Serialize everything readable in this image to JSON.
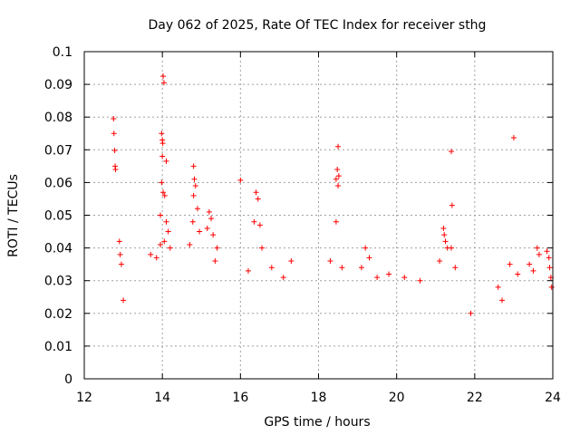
{
  "chart_data": {
    "type": "scatter",
    "title": "Day 062 of 2025, Rate Of TEC Index for receiver sthg",
    "xlabel": "GPS time / hours",
    "ylabel": "ROTI / TECUs",
    "xlim": [
      12,
      24
    ],
    "ylim": [
      0,
      0.1
    ],
    "xticks": [
      12,
      14,
      16,
      18,
      20,
      22,
      24
    ],
    "yticks": [
      0,
      0.01,
      0.02,
      0.03,
      0.04,
      0.05,
      0.06,
      0.07,
      0.08,
      0.09,
      0.1
    ],
    "xtick_labels": [
      "12",
      "14",
      "16",
      "18",
      "20",
      "22",
      "24"
    ],
    "ytick_labels": [
      "0",
      "0.01",
      "0.02",
      "0.03",
      "0.04",
      "0.05",
      "0.06",
      "0.07",
      "0.08",
      "0.09",
      "0.1"
    ],
    "grid": true,
    "marker": "+",
    "marker_color": "#ff0000",
    "series": [
      {
        "name": "ROTI",
        "points": [
          [
            12.75,
            0.0795
          ],
          [
            12.76,
            0.075
          ],
          [
            12.78,
            0.0698
          ],
          [
            12.79,
            0.065
          ],
          [
            12.8,
            0.064
          ],
          [
            12.9,
            0.042
          ],
          [
            12.92,
            0.038
          ],
          [
            12.95,
            0.035
          ],
          [
            13.0,
            0.024
          ],
          [
            13.7,
            0.038
          ],
          [
            13.85,
            0.037
          ],
          [
            13.95,
            0.041
          ],
          [
            14.02,
            0.0925
          ],
          [
            14.04,
            0.0905
          ],
          [
            13.98,
            0.075
          ],
          [
            14.0,
            0.073
          ],
          [
            14.01,
            0.072
          ],
          [
            14.0,
            0.068
          ],
          [
            14.1,
            0.0665
          ],
          [
            13.98,
            0.06
          ],
          [
            14.02,
            0.057
          ],
          [
            14.06,
            0.056
          ],
          [
            13.95,
            0.05
          ],
          [
            14.1,
            0.048
          ],
          [
            14.05,
            0.042
          ],
          [
            14.2,
            0.04
          ],
          [
            14.15,
            0.045
          ],
          [
            14.8,
            0.065
          ],
          [
            14.82,
            0.061
          ],
          [
            14.85,
            0.059
          ],
          [
            14.8,
            0.056
          ],
          [
            14.9,
            0.052
          ],
          [
            14.78,
            0.048
          ],
          [
            14.95,
            0.045
          ],
          [
            14.7,
            0.041
          ],
          [
            15.2,
            0.051
          ],
          [
            15.25,
            0.049
          ],
          [
            15.15,
            0.046
          ],
          [
            15.3,
            0.044
          ],
          [
            15.4,
            0.04
          ],
          [
            15.35,
            0.036
          ],
          [
            16.0,
            0.0607
          ],
          [
            16.4,
            0.057
          ],
          [
            16.45,
            0.055
          ],
          [
            16.35,
            0.048
          ],
          [
            16.5,
            0.047
          ],
          [
            16.55,
            0.04
          ],
          [
            16.2,
            0.033
          ],
          [
            16.8,
            0.034
          ],
          [
            17.3,
            0.036
          ],
          [
            17.1,
            0.031
          ],
          [
            18.5,
            0.071
          ],
          [
            18.48,
            0.064
          ],
          [
            18.45,
            0.061
          ],
          [
            18.5,
            0.059
          ],
          [
            18.52,
            0.062
          ],
          [
            18.45,
            0.048
          ],
          [
            18.3,
            0.036
          ],
          [
            18.6,
            0.034
          ],
          [
            19.2,
            0.04
          ],
          [
            19.3,
            0.037
          ],
          [
            19.1,
            0.034
          ],
          [
            19.5,
            0.031
          ],
          [
            19.8,
            0.032
          ],
          [
            20.2,
            0.031
          ],
          [
            20.6,
            0.03
          ],
          [
            21.2,
            0.046
          ],
          [
            21.22,
            0.044
          ],
          [
            21.25,
            0.042
          ],
          [
            21.3,
            0.04
          ],
          [
            21.4,
            0.0695
          ],
          [
            21.42,
            0.053
          ],
          [
            21.4,
            0.04
          ],
          [
            21.1,
            0.036
          ],
          [
            21.5,
            0.034
          ],
          [
            21.9,
            0.02
          ],
          [
            22.6,
            0.028
          ],
          [
            22.7,
            0.024
          ],
          [
            23.0,
            0.0737
          ],
          [
            22.9,
            0.035
          ],
          [
            23.1,
            0.032
          ],
          [
            23.4,
            0.035
          ],
          [
            23.5,
            0.033
          ],
          [
            23.6,
            0.04
          ],
          [
            23.65,
            0.038
          ],
          [
            23.85,
            0.039
          ],
          [
            23.9,
            0.037
          ],
          [
            23.92,
            0.034
          ],
          [
            23.95,
            0.031
          ],
          [
            23.97,
            0.028
          ]
        ]
      }
    ]
  }
}
